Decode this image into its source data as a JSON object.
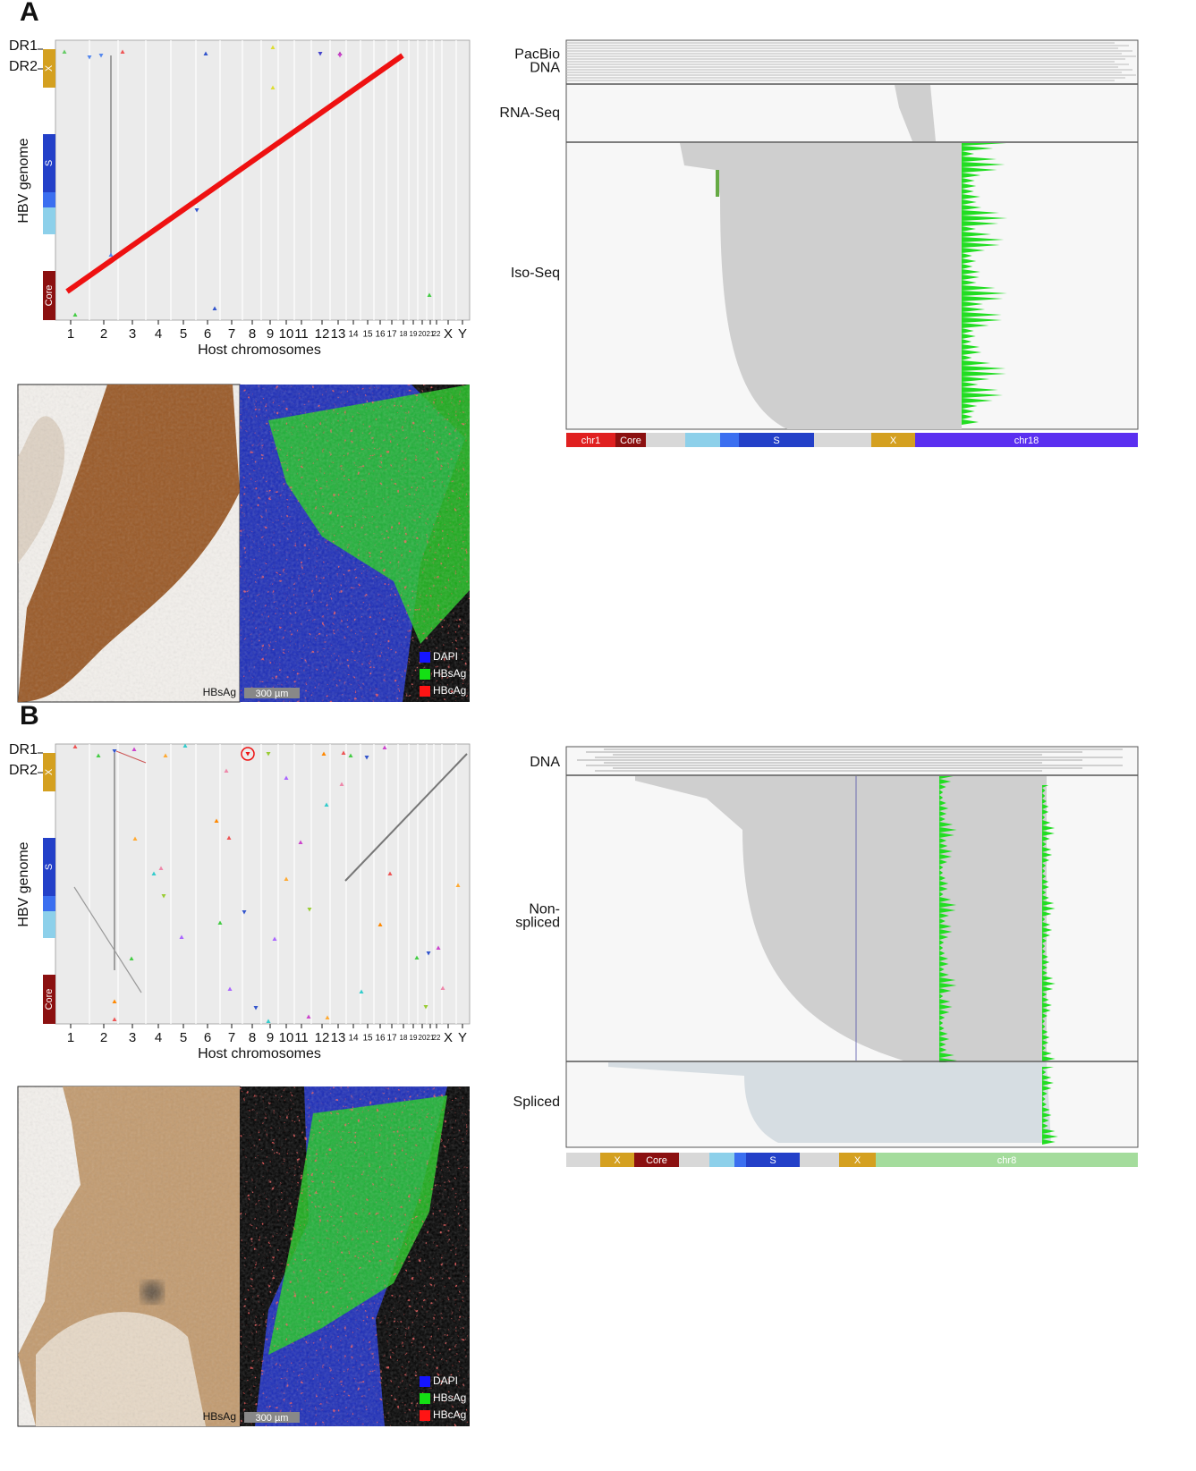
{
  "panels": [
    {
      "label": "A",
      "dot_plot": {
        "y_labels": [
          "DR1",
          "DR2"
        ],
        "y_axis_title": "HBV genome",
        "genes": [
          "X",
          "S",
          "Core"
        ],
        "x_ticks": [
          "1",
          "2",
          "3",
          "4",
          "5",
          "6",
          "7",
          "8",
          "9",
          "10",
          "11",
          "12",
          "13",
          "14",
          "15",
          "16",
          "17",
          "18",
          "19",
          "20",
          "21",
          "22",
          "X",
          "Y"
        ],
        "x_axis_title": "Host chromosomes"
      },
      "micrograph": {
        "stain_label": "HBsAg",
        "scale_bar": "300 µm",
        "legend": [
          "DAPI",
          "HBsAg",
          "HBcAg"
        ]
      },
      "tracks": {
        "labels": [
          [
            "PacBio",
            "DNA"
          ],
          [
            "RNA-Seq"
          ],
          [
            "Iso-Seq"
          ]
        ],
        "genome_bar": [
          "chr1",
          "Core",
          "S",
          "X",
          "chr18"
        ]
      }
    },
    {
      "label": "B",
      "dot_plot": {
        "y_labels": [
          "DR1",
          "DR2"
        ],
        "y_axis_title": "HBV genome",
        "genes": [
          "X",
          "S",
          "Core"
        ],
        "x_ticks": [
          "1",
          "2",
          "3",
          "4",
          "5",
          "6",
          "7",
          "8",
          "9",
          "10",
          "11",
          "12",
          "13",
          "14",
          "15",
          "16",
          "17",
          "18",
          "19",
          "20",
          "21",
          "22",
          "X",
          "Y"
        ],
        "x_axis_title": "Host chromosomes"
      },
      "micrograph": {
        "stain_label": "HBsAg",
        "scale_bar": "300 µm",
        "legend": [
          "DAPI",
          "HBsAg",
          "HBcAg"
        ]
      },
      "tracks": {
        "labels": [
          [
            "DNA"
          ],
          [
            "Non-",
            "spliced"
          ],
          [
            "Spliced"
          ]
        ],
        "genome_bar": [
          "X",
          "Core",
          "S",
          "X",
          "chr8"
        ]
      }
    }
  ]
}
